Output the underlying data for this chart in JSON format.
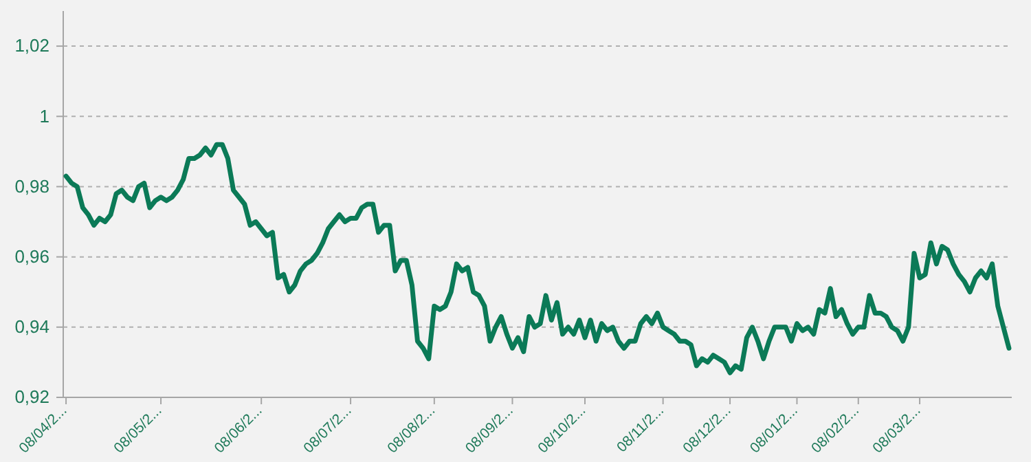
{
  "chart_data": {
    "type": "line",
    "categories": [
      "08/04/2...",
      null,
      null,
      null,
      null,
      null,
      null,
      null,
      null,
      null,
      null,
      null,
      null,
      null,
      null,
      null,
      null,
      "08/05/2...",
      null,
      null,
      null,
      null,
      null,
      null,
      null,
      null,
      null,
      null,
      null,
      null,
      null,
      null,
      null,
      null,
      null,
      "08/06/2...",
      null,
      null,
      null,
      null,
      null,
      null,
      null,
      null,
      null,
      null,
      null,
      null,
      null,
      null,
      null,
      "08/07/2...",
      null,
      null,
      null,
      null,
      null,
      null,
      null,
      null,
      null,
      null,
      null,
      null,
      null,
      null,
      "08/08/2...",
      null,
      null,
      null,
      null,
      null,
      null,
      null,
      null,
      null,
      null,
      null,
      null,
      null,
      "08/09/2...",
      null,
      null,
      null,
      null,
      null,
      null,
      null,
      null,
      null,
      null,
      null,
      null,
      "08/10/2...",
      null,
      null,
      null,
      null,
      null,
      null,
      null,
      null,
      null,
      null,
      null,
      null,
      null,
      "08/11/2...",
      null,
      null,
      null,
      null,
      null,
      null,
      null,
      null,
      null,
      null,
      null,
      "08/12/2...",
      null,
      null,
      null,
      null,
      null,
      null,
      null,
      null,
      null,
      null,
      null,
      "08/01/2...",
      null,
      null,
      null,
      null,
      null,
      null,
      null,
      null,
      null,
      null,
      "08/02/2...",
      null,
      null,
      null,
      null,
      null,
      null,
      null,
      null,
      null,
      null,
      "08/03/2...",
      null,
      null,
      null,
      null,
      null,
      null,
      null,
      null,
      null,
      null,
      null,
      null,
      null,
      null,
      null,
      null
    ],
    "series": [
      {
        "color": "#0b7a57",
        "values": [
          0.983,
          0.981,
          0.98,
          0.974,
          0.972,
          0.969,
          0.971,
          0.97,
          0.972,
          0.978,
          0.979,
          0.977,
          0.976,
          0.98,
          0.981,
          0.974,
          0.976,
          0.977,
          0.976,
          0.977,
          0.979,
          0.982,
          0.988,
          0.988,
          0.989,
          0.991,
          0.989,
          0.992,
          0.992,
          0.988,
          0.979,
          0.977,
          0.975,
          0.969,
          0.97,
          0.968,
          0.966,
          0.967,
          0.954,
          0.955,
          0.95,
          0.952,
          0.956,
          0.958,
          0.959,
          0.961,
          0.964,
          0.968,
          0.97,
          0.972,
          0.97,
          0.971,
          0.971,
          0.974,
          0.975,
          0.975,
          0.967,
          0.969,
          0.969,
          0.956,
          0.959,
          0.959,
          0.952,
          0.936,
          0.934,
          0.931,
          0.946,
          0.945,
          0.946,
          0.95,
          0.958,
          0.956,
          0.957,
          0.95,
          0.949,
          0.946,
          0.936,
          0.94,
          0.943,
          0.938,
          0.934,
          0.937,
          0.933,
          0.943,
          0.94,
          0.941,
          0.949,
          0.942,
          0.947,
          0.938,
          0.94,
          0.938,
          0.942,
          0.937,
          0.942,
          0.936,
          0.941,
          0.939,
          0.94,
          0.936,
          0.934,
          0.936,
          0.936,
          0.941,
          0.943,
          0.941,
          0.944,
          0.94,
          0.939,
          0.938,
          0.936,
          0.936,
          0.935,
          0.929,
          0.931,
          0.93,
          0.932,
          0.931,
          0.93,
          0.927,
          0.929,
          0.928,
          0.937,
          0.94,
          0.936,
          0.931,
          0.936,
          0.94,
          0.94,
          0.94,
          0.936,
          0.941,
          0.939,
          0.94,
          0.938,
          0.945,
          0.944,
          0.951,
          0.943,
          0.945,
          0.941,
          0.938,
          0.94,
          0.94,
          0.949,
          0.944,
          0.944,
          0.943,
          0.94,
          0.939,
          0.936,
          0.94,
          0.961,
          0.954,
          0.955,
          0.964,
          0.958,
          0.963,
          0.962,
          0.958,
          0.955,
          0.953,
          0.95,
          0.954,
          0.956,
          0.954,
          0.958,
          0.946,
          0.94,
          0.934
        ]
      }
    ],
    "ylim": [
      0.92,
      1.03
    ],
    "yticks": [
      {
        "value": 0.92,
        "label": "0,92"
      },
      {
        "value": 0.94,
        "label": "0,94"
      },
      {
        "value": 0.96,
        "label": "0,96"
      },
      {
        "value": 0.98,
        "label": "0,98"
      },
      {
        "value": 1,
        "label": "1"
      },
      {
        "value": 1.02,
        "label": "1,02"
      }
    ],
    "grid": "y",
    "marker": "none",
    "line_style": "solid"
  }
}
